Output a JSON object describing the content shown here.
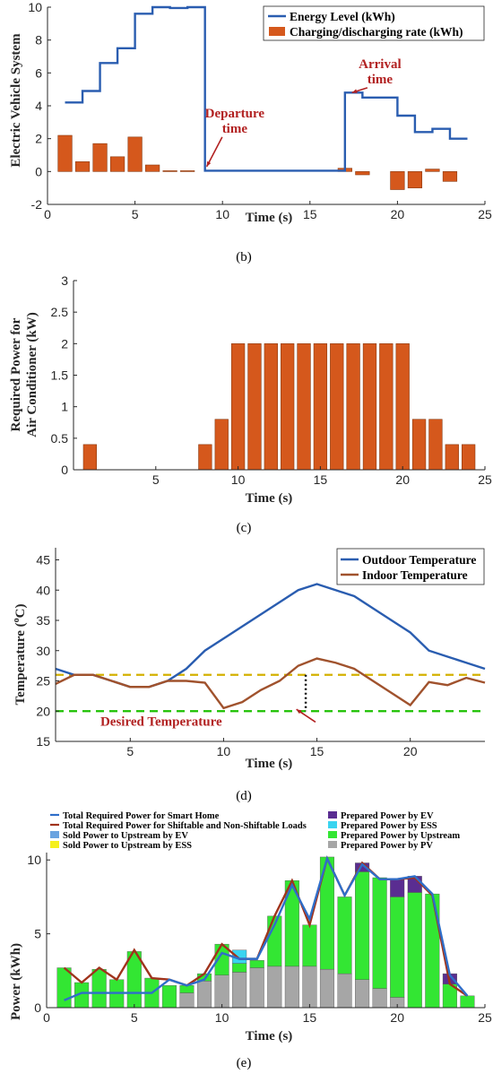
{
  "chart_data": [
    {
      "type": "bar",
      "caption": "(b)",
      "xlabel": "Time (s)",
      "ylabel": "Electric Vehicle System",
      "xlim": [
        0,
        25
      ],
      "ylim": [
        -2,
        10
      ],
      "xticks": [
        0,
        5,
        10,
        15,
        20,
        25
      ],
      "yticks": [
        -2,
        0,
        2,
        4,
        6,
        8,
        10
      ],
      "legend_position": "top-right",
      "series": [
        {
          "name": "Energy Level (kWh)",
          "kind": "stairs",
          "color": "#2a5db0",
          "x": [
            1,
            2,
            3,
            4,
            5,
            6,
            7,
            8,
            9,
            10,
            11,
            12,
            13,
            14,
            15,
            16,
            17,
            18,
            19,
            20,
            21,
            22,
            23,
            24
          ],
          "y": [
            4.2,
            4.9,
            6.6,
            7.5,
            9.6,
            10.0,
            9.95,
            10.0,
            0.05,
            0.05,
            0.05,
            0.05,
            0.05,
            0.05,
            0.05,
            0.05,
            4.8,
            4.5,
            4.5,
            3.4,
            2.4,
            2.6,
            2.0,
            2.0
          ]
        },
        {
          "name": "Charging/discharging rate (kWh)",
          "kind": "bar",
          "color": "#d5581c",
          "x": [
            1,
            2,
            3,
            4,
            5,
            6,
            7,
            8,
            9,
            10,
            11,
            12,
            13,
            14,
            15,
            16,
            17,
            18,
            19,
            20,
            21,
            22,
            23
          ],
          "y": [
            2.2,
            0.6,
            1.7,
            0.9,
            2.1,
            0.4,
            0.05,
            0.05,
            0,
            0,
            0,
            0,
            0,
            0,
            0,
            0,
            0.2,
            -0.2,
            0,
            -1.1,
            -1.0,
            0.15,
            -0.6
          ]
        }
      ],
      "annotations": [
        {
          "lines": [
            "Departure",
            "time"
          ],
          "text_x": 10.7,
          "text_y": 3.3,
          "arrow_to": [
            9.1,
            0.3
          ]
        },
        {
          "lines": [
            "Arrival",
            "time"
          ],
          "text_x": 19.0,
          "text_y": 6.3,
          "arrow_to": [
            17.4,
            4.8
          ]
        }
      ]
    },
    {
      "type": "bar",
      "caption": "(c)",
      "xlabel": "Time (s)",
      "ylabel": "Required Power for Air Conditioner (kW)",
      "ylabel_lines": [
        "Required Power for",
        "Air Conditioner (kW)"
      ],
      "xlim": [
        0,
        25
      ],
      "ylim": [
        0,
        3
      ],
      "xticks": [
        5,
        10,
        15,
        20,
        25
      ],
      "yticks": [
        0,
        0.5,
        1,
        1.5,
        2,
        2.5,
        3
      ],
      "series": [
        {
          "kind": "bar",
          "color": "#d5581c",
          "x": [
            1,
            2,
            3,
            4,
            5,
            6,
            7,
            8,
            9,
            10,
            11,
            12,
            13,
            14,
            15,
            16,
            17,
            18,
            19,
            20,
            21,
            22,
            23,
            24
          ],
          "y": [
            0.4,
            0,
            0,
            0,
            0,
            0,
            0,
            0.4,
            0.8,
            2,
            2,
            2,
            2,
            2,
            2,
            2,
            2,
            2,
            2,
            2,
            0.8,
            0.8,
            0.4,
            0.4
          ]
        }
      ]
    },
    {
      "type": "line",
      "caption": "(d)",
      "xlabel": "Time (s)",
      "ylabel": "Temperature (oC)",
      "ylabel_main": "Temperature (",
      "ylabel_sup": "o",
      "ylabel_end": "C)",
      "xlim": [
        1,
        24
      ],
      "ylim": [
        15,
        47
      ],
      "xticks": [
        5,
        10,
        15,
        20
      ],
      "yticks": [
        15,
        20,
        25,
        30,
        35,
        40,
        45
      ],
      "legend_position": "top-right",
      "series": [
        {
          "name": "Outdoor Temperature",
          "color": "#2a5db0",
          "x": [
            1,
            2,
            3,
            4,
            5,
            6,
            7,
            8,
            9,
            10,
            11,
            12,
            13,
            14,
            15,
            16,
            17,
            18,
            19,
            20,
            21,
            22,
            23,
            24
          ],
          "y": [
            27,
            26,
            26,
            25,
            24,
            24,
            25,
            27,
            30,
            32,
            34,
            36,
            38,
            40,
            41,
            40,
            39,
            37,
            35,
            33,
            30,
            29,
            28,
            27
          ]
        },
        {
          "name": "Indoor Temperature",
          "color": "#a0522d",
          "x": [
            1,
            2,
            3,
            4,
            5,
            6,
            7,
            8,
            9,
            10,
            11,
            12,
            13,
            14,
            15,
            16,
            17,
            18,
            19,
            20,
            21,
            22,
            23,
            24
          ],
          "y": [
            24.5,
            26,
            26,
            25,
            24,
            24,
            25,
            25,
            24.7,
            20.5,
            21.5,
            23.5,
            25,
            27.5,
            28.7,
            28,
            27,
            25,
            23,
            21,
            24.8,
            24.3,
            25.5,
            24.7
          ]
        }
      ],
      "reference_lines": [
        {
          "y": 26,
          "color": "#d4b000"
        },
        {
          "y": 20,
          "color": "#1dc000"
        }
      ],
      "desired_band_marker": {
        "x": 14.4,
        "from": 20,
        "to": 26
      },
      "annotation": {
        "text": "Desired Temperature",
        "text_x": 3.4,
        "text_y": 17.6,
        "arrow_to": [
          13.9,
          20.3
        ]
      }
    },
    {
      "type": "bar",
      "caption": "(e)",
      "xlabel": "Time (s)",
      "ylabel": "Power (kWh)",
      "xlim": [
        0,
        25
      ],
      "ylim": [
        0,
        10.5
      ],
      "xticks": [
        0,
        5,
        10,
        15,
        20,
        25
      ],
      "yticks": [
        0,
        5,
        10
      ],
      "legend_position": "top",
      "legend": [
        {
          "name": "Total Required Power for Smart Home",
          "color": "#2f6ec9",
          "kind": "line"
        },
        {
          "name": "Prepared Power by EV",
          "color": "#5a2d91",
          "kind": "patch"
        },
        {
          "name": "Total Required Power for Shiftable and Non-Shiftable Loads",
          "color": "#a0331c",
          "kind": "line"
        },
        {
          "name": "Prepared Power by ESS",
          "color": "#39d4f0",
          "kind": "patch"
        },
        {
          "name": "Sold Power to Upstream by EV",
          "color": "#6aa3e0",
          "kind": "patch"
        },
        {
          "name": "Prepared Power by Upstream",
          "color": "#33e633",
          "kind": "patch"
        },
        {
          "name": "Sold Power to Upstream by ESS",
          "color": "#f5f01e",
          "kind": "patch"
        },
        {
          "name": "Prepared Power by PV",
          "color": "#a6a6a6",
          "kind": "patch"
        }
      ],
      "x": [
        1,
        2,
        3,
        4,
        5,
        6,
        7,
        8,
        9,
        10,
        11,
        12,
        13,
        14,
        15,
        16,
        17,
        18,
        19,
        20,
        21,
        22,
        23,
        24
      ],
      "stack": {
        "pv": [
          0,
          0,
          0,
          0,
          0,
          0,
          0,
          1.0,
          1.8,
          2.2,
          2.4,
          2.7,
          2.8,
          2.8,
          2.8,
          2.6,
          2.3,
          1.9,
          1.3,
          0.7,
          0,
          0,
          0,
          0
        ],
        "upstream": [
          2.7,
          1.7,
          2.6,
          1.9,
          3.8,
          2.0,
          1.5,
          0.5,
          0.5,
          2.1,
          0.6,
          0.5,
          3.4,
          5.8,
          2.8,
          7.6,
          5.2,
          7.3,
          7.5,
          6.8,
          7.8,
          7.7,
          1.6,
          0.8
        ],
        "ess": [
          0,
          0,
          0,
          0,
          0,
          0,
          0,
          0,
          0,
          0,
          0.9,
          0,
          0,
          0,
          0,
          0,
          0,
          0,
          0,
          0,
          0,
          0,
          0,
          0
        ],
        "ev": [
          0,
          0,
          0,
          0,
          0,
          0,
          0,
          0,
          0,
          0,
          0,
          0,
          0,
          0,
          0,
          0,
          0,
          0.6,
          0,
          1.2,
          1.1,
          0,
          0.7,
          0
        ]
      },
      "line_total_smart_home": [
        0.5,
        1.0,
        1.0,
        1.0,
        1.0,
        1.0,
        1.9,
        1.5,
        1.9,
        3.7,
        3.3,
        3.3,
        5.6,
        8.3,
        6.0,
        10.1,
        7.6,
        9.7,
        8.7,
        8.7,
        8.9,
        7.7,
        2.2,
        0.8
      ],
      "line_total_loads": [
        2.7,
        1.7,
        2.7,
        1.9,
        3.9,
        2.0,
        1.9,
        1.5,
        2.3,
        4.3,
        3.3,
        3.3,
        6.2,
        8.6,
        5.6,
        10.1,
        7.6,
        9.8,
        8.7,
        8.7,
        8.8,
        7.6,
        1.6,
        0.8
      ]
    }
  ]
}
